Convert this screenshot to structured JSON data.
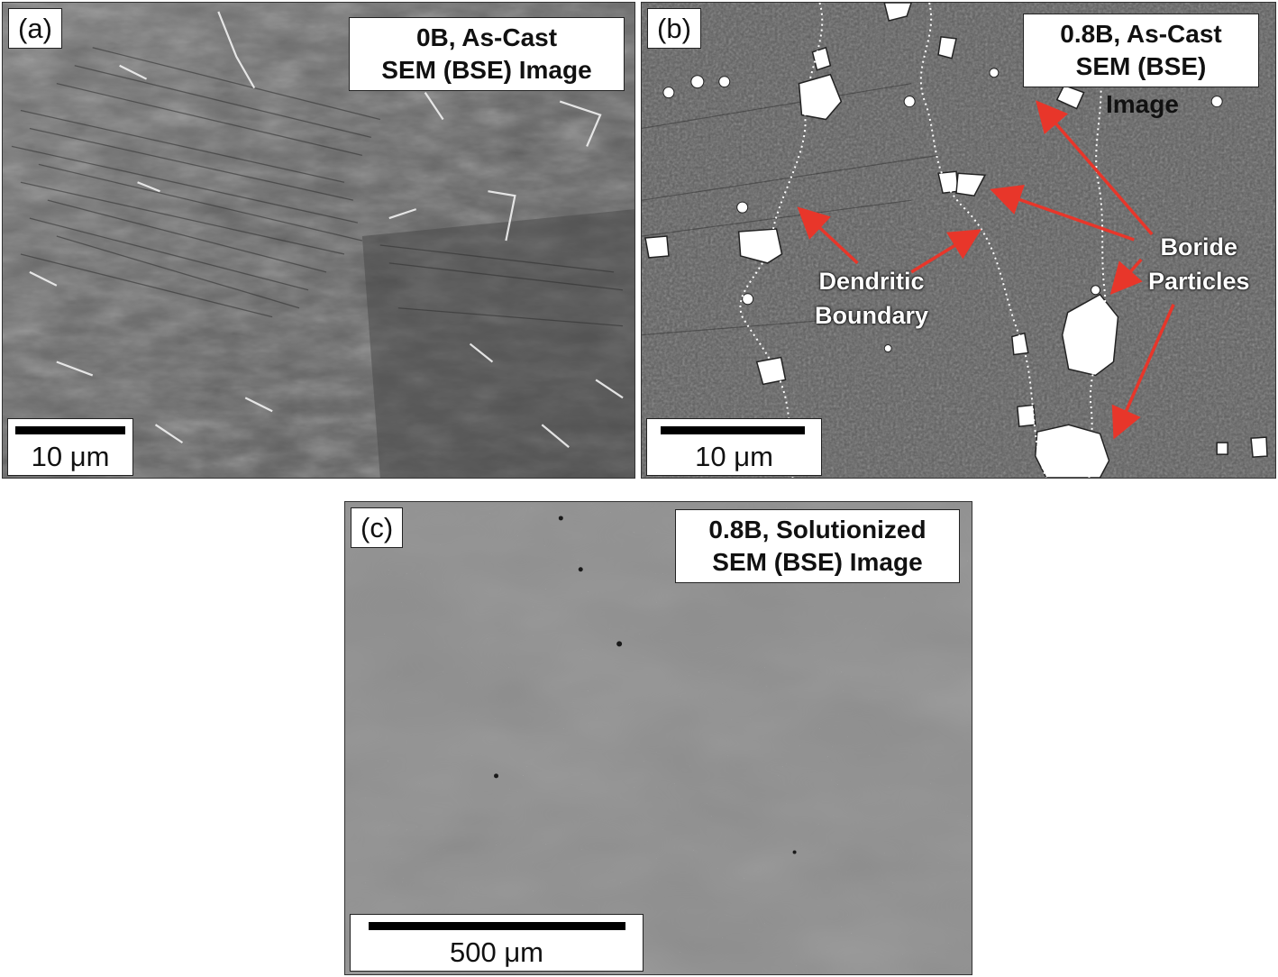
{
  "panels": {
    "a": {
      "tag": "(a)",
      "title_line1": "0B, As-Cast",
      "title_line2": "SEM (BSE) Image",
      "scale_label": "10 μm"
    },
    "b": {
      "tag": "(b)",
      "title_line1": "0.8B, As-Cast",
      "title_line2": "SEM (BSE)",
      "title_overflow": "Image",
      "scale_label": "10 μm",
      "annotation_dendritic_line1": "Dendritic",
      "annotation_dendritic_line2": "Boundary",
      "annotation_boride_line1": "Boride",
      "annotation_boride_line2": "Particles"
    },
    "c": {
      "tag": "(c)",
      "title_line1": "0.8B, Solutionized",
      "title_line2": "SEM (BSE) Image",
      "scale_label": "500 μm"
    }
  },
  "colors": {
    "arrow": "#e8362a",
    "label_box": "#ffffff",
    "scale_bar": "#000000"
  }
}
